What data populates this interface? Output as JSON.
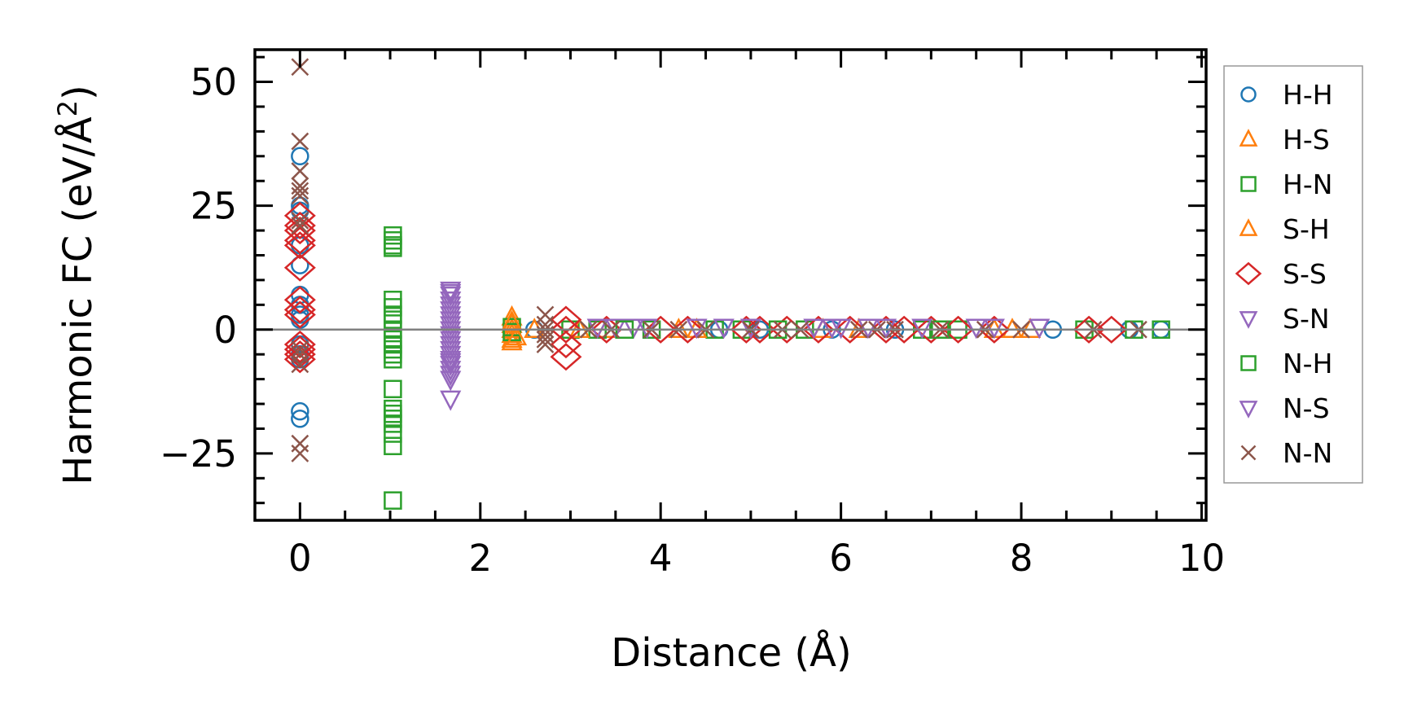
{
  "chart_data": {
    "type": "scatter",
    "xlabel": "Distance (Å)",
    "ylabel": "Harmonic FC (eV/Å²)",
    "ylabel_main": "Harmonic FC (eV/Å",
    "ylabel_sup": "2",
    "ylabel_end": ")",
    "xlim": [
      -0.5,
      10.05
    ],
    "ylim": [
      -38.5,
      56.5
    ],
    "xticks": [
      0,
      2,
      4,
      6,
      8,
      10
    ],
    "xtick_labels": [
      "0",
      "2",
      "4",
      "6",
      "8",
      "10"
    ],
    "yticks": [
      -25,
      0,
      25,
      50
    ],
    "ytick_labels": [
      "−25",
      "0",
      "25",
      "50"
    ],
    "zero_line": true,
    "grid": false,
    "legend_position": "outside-right",
    "series": [
      {
        "name": "H-H",
        "marker": "circle",
        "color": "#1f77b4",
        "x": [
          0,
          0,
          0,
          0,
          0,
          0,
          0,
          0,
          0,
          0,
          0,
          0,
          0,
          0,
          2.6,
          4.65,
          5.1,
          5.9,
          6.6,
          8.35,
          9.2,
          9.55
        ],
        "y": [
          35,
          25,
          24,
          17,
          13,
          7,
          5,
          3,
          2,
          -3,
          -5,
          -6,
          -16.5,
          -18,
          0,
          0,
          0,
          0,
          0,
          0,
          0,
          0
        ]
      },
      {
        "name": "H-S",
        "marker": "triangle-up",
        "color": "#ff7f0e",
        "x": [
          2.35,
          2.35,
          2.35,
          2.35,
          2.35,
          2.35,
          2.6,
          3.4,
          4.2,
          5.8,
          7.7,
          8.1
        ],
        "y": [
          2.5,
          1,
          0,
          -1,
          -2,
          -2.5,
          0,
          0,
          0,
          0,
          0,
          0
        ]
      },
      {
        "name": "H-N",
        "marker": "square",
        "color": "#2ca02c",
        "x": [
          1.03,
          1.03,
          1.03,
          1.03,
          1.03,
          1.03,
          1.03,
          1.03,
          1.03,
          1.03,
          1.03,
          1.03,
          1.03,
          1.03,
          1.03,
          1.03,
          1.03,
          1.03,
          1.03,
          1.03,
          2.35,
          2.35,
          3.0,
          3.3,
          3.9,
          4.6,
          4.9,
          5.6,
          6.9,
          7.3,
          8.7,
          9.25,
          9.55
        ],
        "y": [
          19,
          18,
          17,
          16.5,
          6,
          3,
          2,
          0,
          -3,
          -4,
          -5,
          -6,
          -12,
          -16,
          -17,
          -18,
          -19,
          -21,
          -23.5,
          -34.5,
          0.5,
          -0.5,
          0,
          0,
          0,
          0,
          0,
          0,
          0,
          0,
          0,
          0,
          0
        ]
      },
      {
        "name": "S-H",
        "marker": "triangle-up",
        "color": "#ff7f0e",
        "x": [
          2.35,
          2.4,
          3.1,
          4.4,
          6.2,
          7.9
        ],
        "y": [
          1.5,
          -1.5,
          0,
          0,
          0,
          0
        ]
      },
      {
        "name": "S-S",
        "marker": "diamond",
        "color": "#d62728",
        "x": [
          0,
          0,
          0,
          0,
          0,
          0,
          0,
          0,
          0,
          0,
          0,
          0,
          0,
          2.95,
          2.95,
          2.95,
          2.95,
          3.4,
          4.0,
          4.3,
          4.95,
          5.1,
          5.4,
          5.75,
          6.1,
          6.5,
          6.7,
          7.0,
          7.3,
          7.7,
          8.75,
          9.0
        ],
        "y": [
          23,
          21,
          20,
          18,
          17,
          12.5,
          6,
          4,
          3,
          -3,
          -4,
          -5,
          -6,
          2,
          0,
          -3,
          -5.5,
          0,
          0,
          0,
          0,
          0,
          0,
          0,
          0,
          0,
          0,
          0,
          0,
          0,
          0,
          0
        ]
      },
      {
        "name": "S-N",
        "marker": "triangle-down",
        "color": "#9467bd",
        "x": [
          1.67,
          1.67,
          1.67,
          1.67,
          1.67,
          1.67,
          1.67,
          1.67,
          1.67,
          1.67,
          1.67,
          1.67,
          1.67,
          1.67,
          1.67,
          1.67,
          1.67,
          1.67,
          1.67,
          1.67,
          3.5,
          3.7,
          3.85,
          4.4,
          5.0,
          5.7,
          5.9,
          6.0,
          6.3,
          6.9,
          7.5,
          8.2
        ],
        "y": [
          8,
          7,
          6,
          5,
          4,
          3,
          2,
          1,
          0,
          -1,
          -2,
          -3,
          -4,
          -5,
          -6,
          -7,
          -8,
          -9,
          -10,
          -14,
          0.5,
          0.5,
          0.5,
          0.5,
          0.5,
          0.5,
          0.5,
          0.5,
          0.5,
          0.5,
          0.5,
          0.5
        ]
      },
      {
        "name": "N-H",
        "marker": "square",
        "color": "#2ca02c",
        "x": [
          1.03,
          1.03,
          3.6,
          5.3,
          7.1
        ],
        "y": [
          4.5,
          -2,
          0,
          0,
          0
        ]
      },
      {
        "name": "N-S",
        "marker": "triangle-down",
        "color": "#9467bd",
        "x": [
          1.67,
          1.67,
          3.3,
          4.7,
          6.5,
          7.7
        ],
        "y": [
          7.5,
          -6.5,
          0.5,
          0.5,
          0.5,
          0.5
        ]
      },
      {
        "name": "N-N",
        "marker": "x",
        "color": "#8c564b",
        "x": [
          0,
          0,
          0,
          0,
          0,
          0,
          0,
          0,
          0,
          0,
          0,
          0,
          0,
          2.72,
          2.72,
          2.72,
          2.72,
          2.72,
          2.72,
          3.2,
          3.45,
          3.9,
          4.2,
          4.5,
          5.0,
          5.35,
          5.55,
          6.2,
          6.4,
          6.6,
          7.1,
          7.6,
          8.0,
          8.8,
          9.3
        ],
        "y": [
          53,
          38,
          32,
          29,
          28,
          27,
          22,
          21,
          -4,
          -5,
          -7,
          -23,
          -25,
          3,
          1,
          0,
          -1,
          -2,
          -3,
          0,
          0,
          0,
          0,
          0,
          0,
          0,
          0,
          0,
          0,
          0,
          0,
          0,
          0,
          0,
          0
        ]
      }
    ]
  }
}
